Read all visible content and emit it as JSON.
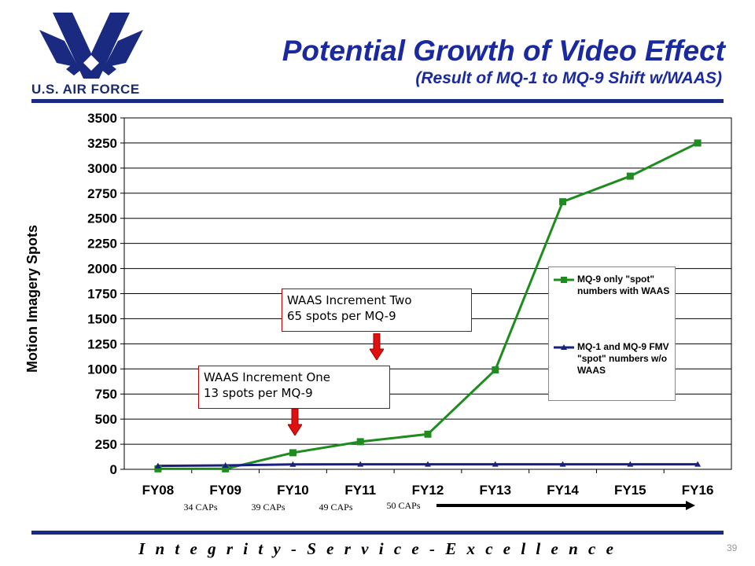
{
  "header": {
    "logo_text": "U.S. AIR FORCE",
    "title": "Potential Growth of Video Effect",
    "subtitle": "(Result of MQ-1 to MQ-9 Shift w/WAAS)"
  },
  "chart_data": {
    "type": "line",
    "title": "Potential Growth of Video Effect",
    "subtitle": "(Result of MQ-1 to MQ-9 Shift w/WAAS)",
    "ylabel": "Motion Imagery Spots",
    "xlabel": "",
    "categories": [
      "FY08",
      "FY09",
      "FY10",
      "FY11",
      "FY12",
      "FY13",
      "FY14",
      "FY15",
      "FY16"
    ],
    "ylim": [
      0,
      3500
    ],
    "yticks": [
      0,
      250,
      500,
      750,
      1000,
      1250,
      1500,
      1750,
      2000,
      2250,
      2500,
      2750,
      3000,
      3250,
      3500
    ],
    "grid": true,
    "legend_position": "right",
    "series": [
      {
        "name": "MQ-9 only \"spot\" numbers with WAAS",
        "color": "#1e8c1e",
        "marker": "square",
        "values": [
          5,
          5,
          165,
          275,
          350,
          990,
          2665,
          2920,
          3250
        ]
      },
      {
        "name": "MQ-1 and MQ-9 FMV \"spot\" numbers w/o WAAS",
        "color": "#1a2080",
        "marker": "triangle",
        "values": [
          34,
          39,
          49,
          50,
          50,
          50,
          50,
          50,
          50
        ]
      }
    ],
    "annotations": [
      {
        "line1": "WAAS Increment Two",
        "line2": "65 spots per MQ-9"
      },
      {
        "line1": "WAAS Increment One",
        "line2": "13 spots per MQ-9"
      }
    ],
    "cap_labels": [
      "34 CAPs",
      "39 CAPs",
      "49 CAPs",
      "50 CAPs"
    ]
  },
  "footer": {
    "motto": "I n t e g r i t y  -  S e r v i c e  -  E x c e l l e n c e",
    "page_number": "39"
  },
  "colors": {
    "title_blue": "#1a2a9e",
    "rule_blue": "#1a2a80",
    "callout_red": "#c00000",
    "arrow_red": "#e01010"
  }
}
